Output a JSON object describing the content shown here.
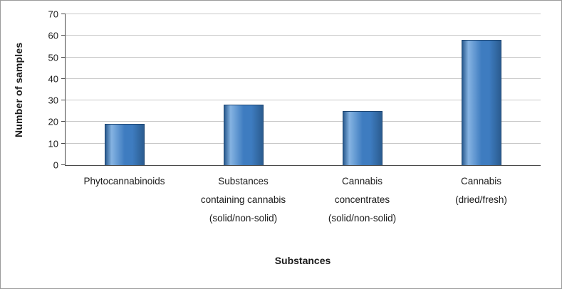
{
  "chart_data": {
    "type": "bar",
    "title": "",
    "categories": [
      "Phytocannabinoids",
      "Substances containing cannabis (solid/non-solid)",
      "Cannabis concentrates (solid/non-solid)",
      "Cannabis (dried/fresh)"
    ],
    "values": [
      19,
      28,
      25,
      58
    ],
    "xlabel": "Substances",
    "ylabel": "Number of samples",
    "ylim": [
      0,
      70
    ],
    "ytick_step": 10,
    "ytick_labels": [
      "0",
      "10",
      "20",
      "30",
      "40",
      "50",
      "60",
      "70"
    ],
    "grid": true,
    "legend": "none",
    "colors": {
      "bar_main": "#3E7CC0",
      "bar_light": "#85B3E2",
      "bar_dark": "#2B5C90",
      "bar_border": "#1B4471",
      "gridline": "#C8C8C8",
      "axis_line": "#4A4A4A",
      "text": "#1A1A1A"
    }
  }
}
